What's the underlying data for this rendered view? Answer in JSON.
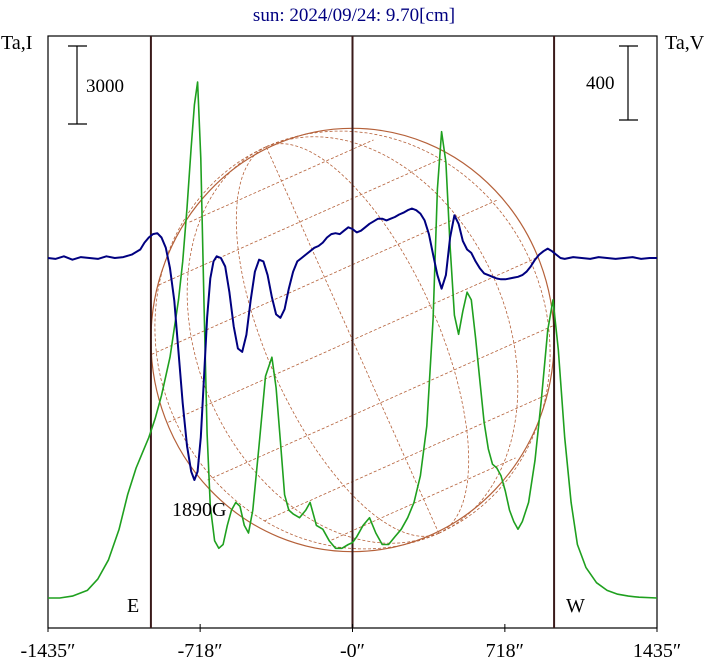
{
  "chart_data": {
    "type": "line",
    "title": "sun: 2024/09/24: 9.70[cm]",
    "left_axis_label": "Ta,I",
    "right_axis_label": "Ta,V",
    "left_scale_bar": {
      "value": 3000,
      "label": "3000"
    },
    "right_scale_bar": {
      "value": 400,
      "label": "400"
    },
    "xlim": [
      -1435,
      1435
    ],
    "x_ticks": [
      {
        "value": -1435,
        "label": "-1435″"
      },
      {
        "value": -718,
        "label": "-718″"
      },
      {
        "value": 0,
        "label": "-0″"
      },
      {
        "value": 718,
        "label": "718″"
      },
      {
        "value": 1435,
        "label": "1435″"
      }
    ],
    "vertical_lines": [
      -950,
      0,
      950
    ],
    "limb_labels": {
      "east": "E",
      "west": "W"
    },
    "annotations": [
      {
        "text": "1890G",
        "x": -700,
        "y_I": 1300
      }
    ],
    "disk_radius_arcsec": 950,
    "grid": false,
    "colors": {
      "I": "#1fa01f",
      "V": "#000080",
      "disk": "#b5613a",
      "vertical_lines": "#3a1a1a"
    },
    "series": [
      {
        "key": "I",
        "color": "#1fa01f",
        "ylim": [
          0,
          14500
        ],
        "x": [
          -1435,
          -1380,
          -1320,
          -1250,
          -1200,
          -1150,
          -1100,
          -1060,
          -1020,
          -990,
          -960,
          -930,
          -900,
          -860,
          -820,
          -800,
          -780,
          -760,
          -745,
          -730,
          -715,
          -700,
          -685,
          -670,
          -650,
          -630,
          -610,
          -590,
          -570,
          -550,
          -530,
          -510,
          -490,
          -470,
          -440,
          -410,
          -380,
          -360,
          -340,
          -320,
          -300,
          -280,
          -250,
          -220,
          -200,
          -170,
          -140,
          -110,
          -80,
          -50,
          -20,
          0,
          20,
          50,
          80,
          110,
          140,
          170,
          200,
          230,
          260,
          290,
          320,
          350,
          380,
          400,
          420,
          440,
          460,
          480,
          500,
          520,
          540,
          560,
          580,
          600,
          620,
          640,
          660,
          680,
          700,
          720,
          740,
          760,
          780,
          800,
          830,
          860,
          890,
          920,
          945,
          970,
          1000,
          1030,
          1060,
          1100,
          1150,
          1200,
          1250,
          1300,
          1350,
          1435
        ],
        "y": [
          0,
          0,
          50,
          200,
          500,
          1000,
          1800,
          2700,
          3400,
          3800,
          4200,
          4700,
          5300,
          6300,
          7800,
          8800,
          10200,
          11800,
          12900,
          13500,
          11500,
          7700,
          4300,
          2400,
          1500,
          1300,
          1400,
          1900,
          2300,
          2500,
          2400,
          1900,
          1700,
          2300,
          4000,
          5800,
          6300,
          5500,
          4100,
          2700,
          2300,
          2200,
          2100,
          2300,
          2500,
          1900,
          1800,
          1500,
          1300,
          1300,
          1400,
          1450,
          1600,
          1900,
          2100,
          1700,
          1400,
          1400,
          1600,
          1800,
          2100,
          2500,
          3200,
          4500,
          7300,
          10700,
          12200,
          11400,
          9200,
          7400,
          6900,
          7500,
          8000,
          7800,
          6800,
          5700,
          4600,
          3900,
          3500,
          3400,
          3200,
          2800,
          2300,
          2000,
          1800,
          2000,
          2500,
          3600,
          5200,
          7000,
          7800,
          6500,
          4200,
          2500,
          1400,
          800,
          400,
          200,
          100,
          50,
          20,
          0
        ]
      },
      {
        "key": "V",
        "color": "#000080",
        "ylim": [
          -1400,
          2400
        ],
        "x": [
          -1435,
          -1400,
          -1360,
          -1320,
          -1280,
          -1240,
          -1200,
          -1160,
          -1120,
          -1080,
          -1040,
          -1000,
          -980,
          -960,
          -940,
          -920,
          -900,
          -880,
          -860,
          -840,
          -820,
          -800,
          -780,
          -760,
          -745,
          -730,
          -715,
          -700,
          -685,
          -670,
          -655,
          -640,
          -620,
          -600,
          -580,
          -560,
          -540,
          -520,
          -500,
          -480,
          -460,
          -440,
          -420,
          -400,
          -380,
          -360,
          -340,
          -320,
          -300,
          -280,
          -260,
          -240,
          -220,
          -200,
          -180,
          -160,
          -140,
          -120,
          -100,
          -80,
          -60,
          -40,
          -20,
          0,
          20,
          40,
          60,
          80,
          100,
          120,
          140,
          160,
          180,
          200,
          220,
          240,
          260,
          280,
          300,
          320,
          340,
          360,
          380,
          400,
          420,
          440,
          460,
          480,
          500,
          520,
          540,
          560,
          580,
          600,
          620,
          640,
          660,
          680,
          700,
          720,
          740,
          760,
          780,
          800,
          820,
          840,
          860,
          880,
          900,
          920,
          940,
          960,
          980,
          1000,
          1040,
          1080,
          1120,
          1160,
          1200,
          1240,
          1280,
          1320,
          1360,
          1400,
          1435
        ],
        "y": [
          0,
          -5,
          10,
          -10,
          5,
          0,
          -5,
          10,
          0,
          5,
          20,
          50,
          90,
          120,
          140,
          145,
          120,
          60,
          -60,
          -250,
          -550,
          -850,
          -1100,
          -1250,
          -1300,
          -1250,
          -1050,
          -700,
          -350,
          -120,
          -20,
          10,
          0,
          -50,
          -200,
          -400,
          -530,
          -550,
          -450,
          -250,
          -80,
          -10,
          -20,
          -100,
          -230,
          -330,
          -350,
          -300,
          -180,
          -80,
          -20,
          0,
          20,
          40,
          60,
          70,
          90,
          120,
          140,
          145,
          140,
          160,
          180,
          170,
          150,
          160,
          180,
          200,
          215,
          230,
          230,
          220,
          230,
          240,
          255,
          265,
          280,
          290,
          280,
          260,
          220,
          140,
          20,
          -100,
          -180,
          -100,
          120,
          250,
          200,
          100,
          50,
          30,
          -20,
          -60,
          -90,
          -100,
          -110,
          -120,
          -125,
          -125,
          -120,
          -115,
          -110,
          -100,
          -80,
          -50,
          -10,
          20,
          40,
          55,
          40,
          20,
          0,
          -5,
          5,
          0,
          -5,
          5,
          0,
          -5,
          0,
          5,
          -5,
          0,
          0
        ]
      }
    ]
  }
}
